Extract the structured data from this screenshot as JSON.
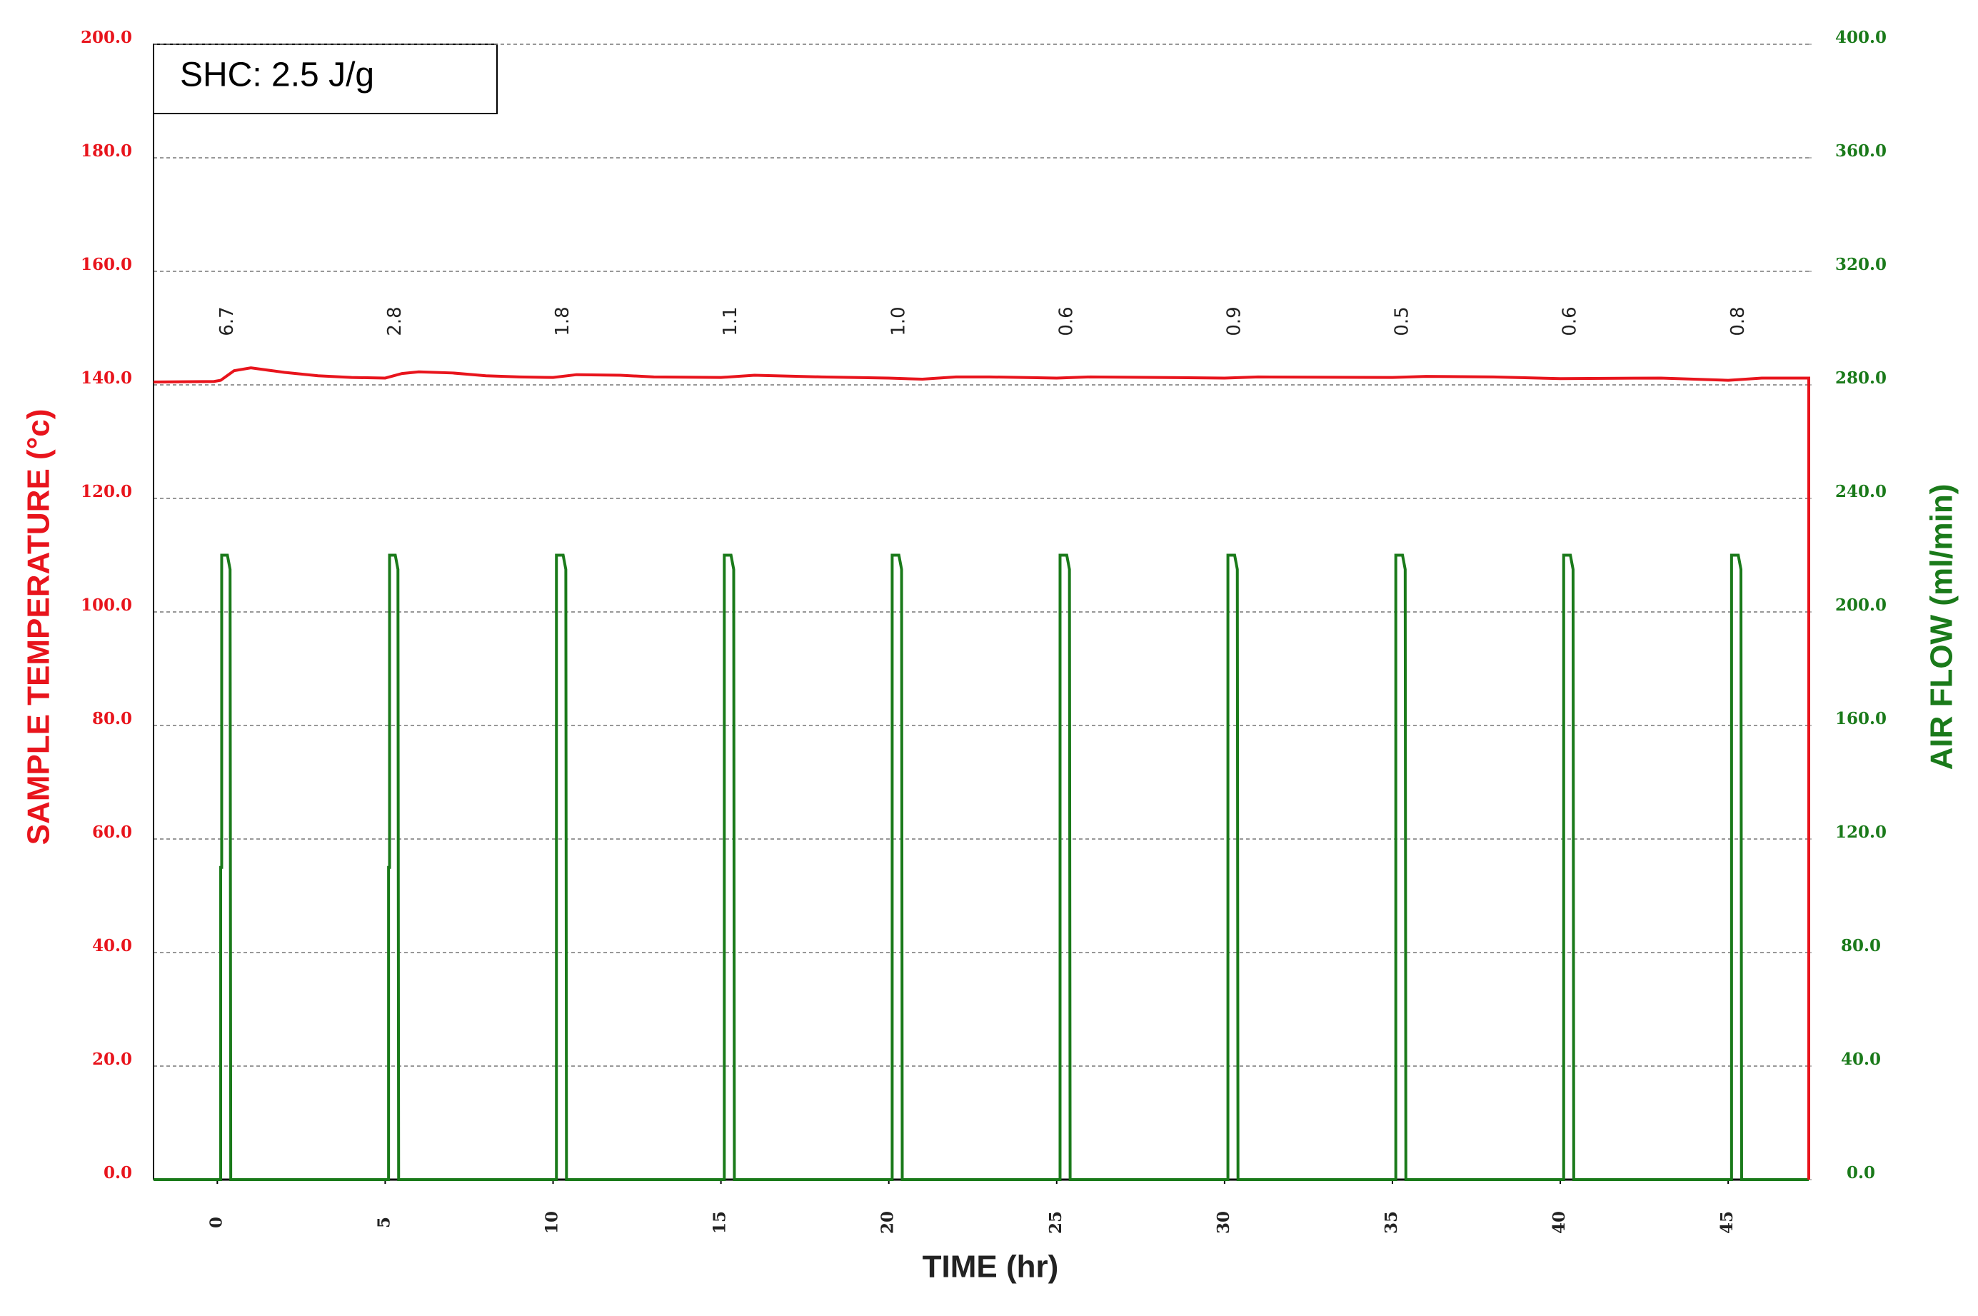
{
  "chart_data": {
    "type": "line",
    "annotation_box": "SHC: 2.5 J/g",
    "xlabel": "TIME (hr)",
    "ylabel": "SAMPLE TEMPERATURE (°c)",
    "y2label": "AIR FLOW (ml/min)",
    "xlim": [
      -1.9,
      47.4
    ],
    "xticks": [
      0,
      5,
      10,
      15,
      20,
      25,
      30,
      35,
      40,
      45
    ],
    "ylim": [
      0,
      200
    ],
    "yticks": [
      {
        "value": 0,
        "label": "0.0"
      },
      {
        "value": 20,
        "label": "20.0"
      },
      {
        "value": 40,
        "label": "40.0"
      },
      {
        "value": 60,
        "label": "60.0"
      },
      {
        "value": 80,
        "label": "80.0"
      },
      {
        "value": 100,
        "label": "100.0"
      },
      {
        "value": 120,
        "label": "120.0"
      },
      {
        "value": 140,
        "label": "140.0"
      },
      {
        "value": 160,
        "label": "160.0"
      },
      {
        "value": 180,
        "label": "180.0"
      },
      {
        "value": 200,
        "label": "200.0"
      }
    ],
    "y2lim": [
      0,
      400
    ],
    "y2ticks": [
      {
        "value": 0,
        "label": "0.0"
      },
      {
        "value": 40,
        "label": "40.0"
      },
      {
        "value": 80,
        "label": "80.0"
      },
      {
        "value": 120,
        "label": "120.0"
      },
      {
        "value": 160,
        "label": "160.0"
      },
      {
        "value": 200,
        "label": "200.0"
      },
      {
        "value": 240,
        "label": "240.0"
      },
      {
        "value": 280,
        "label": "280.0"
      },
      {
        "value": 320,
        "label": "320.0"
      },
      {
        "value": 360,
        "label": "360.0"
      },
      {
        "value": 400,
        "label": "400.0"
      }
    ],
    "grid": true,
    "ycolor": "#e8141c",
    "y2color": "#1a7a1a",
    "series": [
      {
        "color": "#e8141c",
        "axis": "y",
        "x": [
          -1.9,
          -0.1,
          0.1,
          0.5,
          1.0,
          2.0,
          3.0,
          4.0,
          5.0,
          5.5,
          6.0,
          7.0,
          8.0,
          9.0,
          10.0,
          10.7,
          12.0,
          13.0,
          15.0,
          16.0,
          18.0,
          20.0,
          21.0,
          22.0,
          23.0,
          25.0,
          26.0,
          30.0,
          31.0,
          35.0,
          36.0,
          38.0,
          40.0,
          43.0,
          45.0,
          46.0,
          47.4,
          47.4,
          47.4
        ],
        "values": [
          140.5,
          140.6,
          140.8,
          142.5,
          143.0,
          142.2,
          141.6,
          141.3,
          141.2,
          142.0,
          142.3,
          142.1,
          141.6,
          141.4,
          141.3,
          141.8,
          141.7,
          141.4,
          141.3,
          141.7,
          141.4,
          141.2,
          141.0,
          141.4,
          141.4,
          141.2,
          141.4,
          141.2,
          141.4,
          141.3,
          141.5,
          141.4,
          141.1,
          141.2,
          140.8,
          141.2,
          141.2,
          70,
          0
        ]
      },
      {
        "color": "#1a7a1a",
        "axis": "y2",
        "x": [
          -1.9,
          0.1,
          0.1,
          0.13,
          0.13,
          0.3,
          0.38,
          0.4,
          5.1,
          5.1,
          5.13,
          5.13,
          5.3,
          5.38,
          5.4,
          10.1,
          10.1,
          10.3,
          10.38,
          10.4,
          15.1,
          15.1,
          15.3,
          15.38,
          15.4,
          20.1,
          20.1,
          20.3,
          20.38,
          20.4,
          25.1,
          25.1,
          25.3,
          25.38,
          25.4,
          30.1,
          30.1,
          30.3,
          30.38,
          30.4,
          35.1,
          35.1,
          35.3,
          35.38,
          35.4,
          40.1,
          40.1,
          40.3,
          40.38,
          40.4,
          45.1,
          45.1,
          45.3,
          45.38,
          45.4,
          47.4
        ],
        "values": [
          0,
          0,
          110,
          110,
          220,
          220,
          215,
          0,
          0,
          110,
          110,
          220,
          220,
          215,
          0,
          0,
          220,
          220,
          215,
          0,
          0,
          220,
          220,
          215,
          0,
          0,
          220,
          220,
          215,
          0,
          0,
          220,
          220,
          215,
          0,
          0,
          220,
          220,
          215,
          0,
          0,
          220,
          220,
          215,
          0,
          0,
          220,
          220,
          215,
          0,
          0,
          220,
          220,
          215,
          0,
          0
        ]
      }
    ],
    "annotations": [
      {
        "x": 0.3,
        "text": "6.7"
      },
      {
        "x": 5.3,
        "text": "2.8"
      },
      {
        "x": 10.3,
        "text": "1.8"
      },
      {
        "x": 15.3,
        "text": "1.1"
      },
      {
        "x": 20.3,
        "text": "1.0"
      },
      {
        "x": 25.3,
        "text": "0.6"
      },
      {
        "x": 30.3,
        "text": "0.9"
      },
      {
        "x": 35.3,
        "text": "0.5"
      },
      {
        "x": 40.3,
        "text": "0.6"
      },
      {
        "x": 45.3,
        "text": "0.8"
      }
    ]
  }
}
